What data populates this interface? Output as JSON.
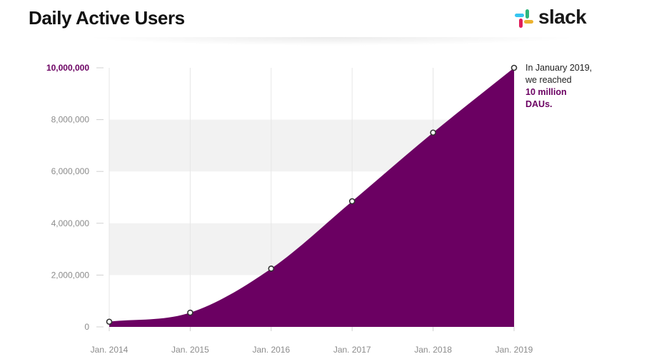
{
  "page": {
    "title": "Daily Active Users",
    "brand": "slack",
    "brand_colors": [
      "#36C5F0",
      "#2EB67D",
      "#ECB22E",
      "#E01E5A"
    ],
    "accent_color": "#6b0062",
    "annotation": {
      "line1": "In January 2019,",
      "line2": "we reached",
      "highlight1": "10 million",
      "highlight2": "DAUs."
    }
  },
  "chart_data": {
    "type": "area",
    "title": "Daily Active Users",
    "xlabel": "",
    "ylabel": "",
    "ylim": [
      0,
      10000000
    ],
    "yticks": [
      0,
      2000000,
      4000000,
      6000000,
      8000000,
      10000000
    ],
    "ytick_labels": [
      "0",
      "2,000,000",
      "4,000,000",
      "6,000,000",
      "8,000,000",
      "10,000,000"
    ],
    "categories": [
      "Jan. 2014",
      "Jan. 2015",
      "Jan. 2016",
      "Jan. 2017",
      "Jan. 2018",
      "Jan. 2019"
    ],
    "series": [
      {
        "values": [
          200000,
          550000,
          2250000,
          4850000,
          7500000,
          10000000
        ]
      }
    ],
    "fill_color": "#6b0062",
    "grid": "alternating horizontal bands + vertical lines at each category",
    "legend": "none"
  }
}
